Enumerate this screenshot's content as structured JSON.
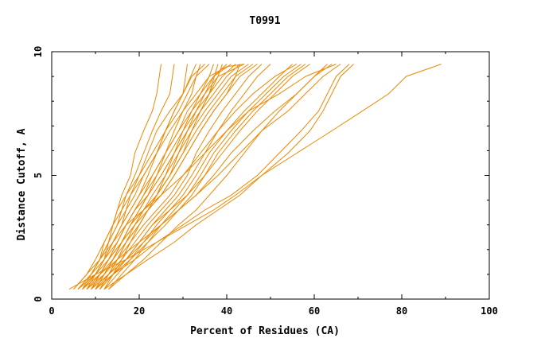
{
  "chart_data": {
    "type": "line",
    "title": "T0991",
    "xlabel": "Percent of Residues (CA)",
    "ylabel": "Distance Cutoff, A",
    "xlim": [
      0,
      100
    ],
    "ylim": [
      0,
      10
    ],
    "x_ticks": [
      0,
      20,
      40,
      60,
      80,
      100
    ],
    "y_ticks": [
      0,
      5,
      10
    ],
    "grid": false,
    "legend": "none",
    "line_color": "#ee8800",
    "series_count": 34,
    "series": [
      {
        "x": [
          6,
          10,
          12,
          14,
          16,
          17,
          18,
          20,
          23,
          26,
          29,
          31,
          33,
          36
        ],
        "y": [
          0.4,
          1.0,
          1.6,
          2.3,
          3.0,
          3.6,
          4.2,
          5.0,
          5.9,
          6.8,
          7.6,
          8.3,
          9.0,
          9.5
        ]
      },
      {
        "x": [
          5,
          8,
          11,
          13,
          15,
          17,
          19,
          21,
          24,
          27,
          30,
          33,
          36,
          40,
          44
        ],
        "y": [
          0.4,
          1.0,
          1.6,
          2.3,
          3.0,
          3.6,
          4.2,
          5.0,
          5.9,
          6.8,
          7.6,
          8.3,
          9.0,
          9.4,
          9.5
        ]
      },
      {
        "x": [
          7,
          10,
          12,
          13,
          14,
          15,
          17,
          20,
          22,
          24,
          27,
          30,
          33
        ],
        "y": [
          0.4,
          1.0,
          1.6,
          2.3,
          3.0,
          3.6,
          4.2,
          5.0,
          5.9,
          6.8,
          7.6,
          8.3,
          9.5
        ]
      },
      {
        "x": [
          8,
          11,
          13,
          15,
          17,
          19,
          21,
          23,
          26,
          29,
          31,
          34,
          37,
          40
        ],
        "y": [
          0.4,
          1.0,
          1.6,
          2.3,
          3.0,
          3.6,
          4.2,
          5.0,
          5.9,
          6.8,
          7.6,
          8.3,
          9.0,
          9.5
        ]
      },
      {
        "x": [
          6,
          9,
          12,
          15,
          17,
          19,
          21,
          24,
          27,
          30,
          33,
          36,
          38
        ],
        "y": [
          0.4,
          1.0,
          1.6,
          2.3,
          3.0,
          3.6,
          4.2,
          5.0,
          5.9,
          6.8,
          7.6,
          8.3,
          9.5
        ]
      },
      {
        "x": [
          9,
          11,
          13,
          15,
          17,
          19,
          22,
          25,
          28,
          31,
          34,
          36,
          39,
          42
        ],
        "y": [
          0.4,
          1.0,
          1.6,
          2.3,
          3.0,
          3.6,
          4.2,
          5.0,
          5.9,
          6.8,
          7.6,
          8.3,
          9.0,
          9.5
        ]
      },
      {
        "x": [
          7,
          9,
          11,
          12,
          14,
          16,
          18,
          21,
          24,
          26,
          28,
          30,
          32,
          35
        ],
        "y": [
          0.4,
          1.0,
          1.6,
          2.3,
          3.0,
          3.6,
          4.2,
          5.0,
          5.9,
          6.8,
          7.6,
          8.3,
          9.0,
          9.5
        ]
      },
      {
        "x": [
          10,
          12,
          14,
          16,
          18,
          20,
          22,
          25,
          28,
          31,
          33,
          35,
          37,
          41
        ],
        "y": [
          0.4,
          1.0,
          1.6,
          2.3,
          3.0,
          3.6,
          4.2,
          5.0,
          5.9,
          6.8,
          7.6,
          8.3,
          9.0,
          9.5
        ]
      },
      {
        "x": [
          11,
          13,
          15,
          17,
          20,
          22,
          24,
          27,
          30,
          33,
          36,
          39,
          42,
          46
        ],
        "y": [
          0.4,
          1.0,
          1.6,
          2.3,
          3.0,
          3.6,
          4.2,
          5.0,
          5.9,
          6.8,
          7.6,
          8.3,
          9.0,
          9.5
        ]
      },
      {
        "x": [
          8,
          10,
          12,
          14,
          16,
          18,
          20,
          23,
          26,
          29,
          32,
          35,
          38,
          44
        ],
        "y": [
          0.4,
          1.0,
          1.6,
          2.3,
          3.0,
          3.6,
          4.2,
          5.0,
          5.9,
          6.8,
          7.6,
          8.3,
          9.0,
          9.5
        ]
      },
      {
        "x": [
          9,
          12,
          14,
          16,
          19,
          21,
          23,
          26,
          29,
          32,
          35,
          38,
          41,
          45
        ],
        "y": [
          0.4,
          1.0,
          1.6,
          2.3,
          3.0,
          3.6,
          4.2,
          5.0,
          5.9,
          6.8,
          7.6,
          8.3,
          9.0,
          9.5
        ]
      },
      {
        "x": [
          12,
          14,
          16,
          18,
          20,
          22,
          25,
          28,
          31,
          34,
          37,
          40,
          43,
          47
        ],
        "y": [
          0.4,
          1.0,
          1.6,
          2.3,
          3.0,
          3.6,
          4.2,
          5.0,
          5.9,
          6.8,
          7.6,
          8.3,
          9.0,
          9.5
        ]
      },
      {
        "x": [
          10,
          13,
          15,
          17,
          19,
          21,
          24,
          27,
          29,
          31,
          34,
          37,
          40,
          43
        ],
        "y": [
          0.4,
          1.0,
          1.6,
          2.3,
          3.0,
          3.6,
          4.2,
          5.0,
          5.9,
          6.8,
          7.6,
          8.3,
          9.0,
          9.5
        ]
      },
      {
        "x": [
          6,
          9,
          11,
          13,
          15,
          16,
          17,
          19,
          21,
          23,
          25,
          27,
          28
        ],
        "y": [
          0.4,
          1.0,
          1.6,
          2.3,
          3.0,
          3.6,
          4.2,
          5.0,
          5.9,
          6.8,
          7.6,
          8.3,
          9.5
        ]
      },
      {
        "x": [
          7,
          10,
          12,
          14,
          16,
          18,
          20,
          22,
          24,
          26,
          28,
          30,
          31
        ],
        "y": [
          0.4,
          1.0,
          1.6,
          2.3,
          3.0,
          3.6,
          4.2,
          5.0,
          5.9,
          6.8,
          7.6,
          8.3,
          9.5
        ]
      },
      {
        "x": [
          5,
          8,
          10,
          12,
          14,
          15,
          16,
          18,
          19,
          21,
          23,
          24,
          25
        ],
        "y": [
          0.4,
          1.0,
          1.6,
          2.3,
          3.0,
          3.6,
          4.2,
          5.0,
          5.9,
          6.8,
          7.6,
          8.3,
          9.5
        ]
      },
      {
        "x": [
          11,
          14,
          17,
          20,
          23,
          26,
          29,
          32,
          35,
          38,
          41,
          44,
          47,
          50
        ],
        "y": [
          0.4,
          1.0,
          1.6,
          2.3,
          3.0,
          3.6,
          4.2,
          5.0,
          5.9,
          6.8,
          7.6,
          8.3,
          9.0,
          9.5
        ]
      },
      {
        "x": [
          12,
          15,
          18,
          21,
          24,
          27,
          30,
          33,
          36,
          40,
          44,
          48,
          52,
          55
        ],
        "y": [
          0.4,
          1.0,
          1.6,
          2.3,
          3.0,
          3.6,
          4.2,
          5.0,
          5.9,
          6.8,
          7.6,
          8.3,
          9.0,
          9.5
        ]
      },
      {
        "x": [
          10,
          14,
          18,
          22,
          26,
          29,
          32,
          35,
          38,
          42,
          46,
          50,
          54,
          58
        ],
        "y": [
          0.4,
          1.0,
          1.6,
          2.3,
          3.0,
          3.6,
          4.2,
          5.0,
          5.9,
          6.8,
          7.6,
          8.3,
          9.0,
          9.5
        ]
      },
      {
        "x": [
          13,
          17,
          21,
          25,
          29,
          33,
          36,
          40,
          44,
          48,
          52,
          56,
          60,
          63
        ],
        "y": [
          0.4,
          1.0,
          1.6,
          2.3,
          3.0,
          3.6,
          4.2,
          5.0,
          5.9,
          6.8,
          7.6,
          8.3,
          9.0,
          9.5
        ]
      },
      {
        "x": [
          9,
          13,
          17,
          21,
          25,
          29,
          33,
          37,
          41,
          46,
          51,
          56,
          60,
          64
        ],
        "y": [
          0.4,
          1.0,
          1.6,
          2.3,
          3.0,
          3.6,
          4.2,
          5.0,
          5.9,
          6.8,
          7.6,
          8.3,
          9.0,
          9.5
        ]
      },
      {
        "x": [
          8,
          12,
          15,
          18,
          21,
          24,
          27,
          30,
          34,
          38,
          42,
          46,
          51,
          56
        ],
        "y": [
          0.4,
          1.0,
          1.6,
          2.3,
          3.0,
          3.6,
          4.2,
          5.0,
          5.9,
          6.8,
          7.6,
          8.3,
          9.0,
          9.5
        ]
      },
      {
        "x": [
          11,
          14,
          17,
          20,
          23,
          27,
          31,
          35,
          39,
          43,
          47,
          51,
          55,
          59
        ],
        "y": [
          0.4,
          1.0,
          1.6,
          2.3,
          3.0,
          3.6,
          4.2,
          5.0,
          5.9,
          6.8,
          7.6,
          8.3,
          9.0,
          9.5
        ]
      },
      {
        "x": [
          6,
          9,
          11,
          14,
          17,
          21,
          25,
          30,
          35,
          40,
          45,
          52,
          58,
          65
        ],
        "y": [
          0.4,
          1.0,
          1.6,
          2.3,
          3.0,
          3.6,
          4.2,
          5.0,
          5.9,
          6.8,
          7.6,
          8.3,
          9.0,
          9.5
        ]
      },
      {
        "x": [
          7,
          11,
          15,
          20,
          25,
          29,
          33,
          38,
          43,
          48,
          54,
          58,
          62,
          66
        ],
        "y": [
          0.4,
          1.0,
          1.6,
          2.3,
          3.0,
          3.6,
          4.2,
          5.0,
          5.9,
          6.8,
          7.6,
          8.3,
          9.0,
          9.5
        ]
      },
      {
        "x": [
          10,
          14,
          19,
          24,
          30,
          35,
          41,
          47,
          52,
          57,
          61,
          63,
          65,
          68
        ],
        "y": [
          0.4,
          1.0,
          1.6,
          2.3,
          3.0,
          3.6,
          4.2,
          5.0,
          5.9,
          6.8,
          7.6,
          8.3,
          9.0,
          9.5
        ]
      },
      {
        "x": [
          12,
          17,
          22,
          28,
          33,
          38,
          43,
          48,
          54,
          59,
          62,
          64,
          66,
          69
        ],
        "y": [
          0.4,
          1.0,
          1.6,
          2.3,
          3.0,
          3.6,
          4.2,
          5.0,
          5.9,
          6.8,
          7.6,
          8.3,
          9.0,
          9.5
        ]
      },
      {
        "x": [
          4,
          10,
          17,
          24,
          31,
          37,
          42,
          48,
          56,
          64,
          71,
          77,
          81,
          89
        ],
        "y": [
          0.4,
          1.0,
          1.6,
          2.3,
          3.0,
          3.6,
          4.2,
          5.0,
          5.9,
          6.8,
          7.6,
          8.3,
          9.0,
          9.5
        ]
      },
      {
        "x": [
          8,
          11,
          14,
          17,
          20,
          22,
          24,
          26,
          28,
          30,
          32,
          34,
          36,
          37
        ],
        "y": [
          0.4,
          1.0,
          1.6,
          2.3,
          3.0,
          3.6,
          4.2,
          5.0,
          5.9,
          6.8,
          7.6,
          8.3,
          9.0,
          9.5
        ]
      },
      {
        "x": [
          9,
          11,
          13,
          16,
          18,
          20,
          22,
          24,
          26,
          28,
          30,
          32,
          33,
          34
        ],
        "y": [
          0.4,
          1.0,
          1.6,
          2.3,
          3.0,
          3.6,
          4.2,
          5.0,
          5.9,
          6.8,
          7.6,
          8.3,
          9.0,
          9.5
        ]
      },
      {
        "x": [
          10,
          12,
          14,
          16,
          18,
          21,
          24,
          27,
          30,
          32,
          34,
          36,
          38,
          39
        ],
        "y": [
          0.4,
          1.0,
          1.6,
          2.3,
          3.0,
          3.6,
          4.2,
          5.0,
          5.9,
          6.8,
          7.6,
          8.3,
          9.0,
          9.5
        ]
      },
      {
        "x": [
          13,
          16,
          19,
          22,
          25,
          28,
          31,
          34,
          37,
          41,
          45,
          49,
          53,
          57
        ],
        "y": [
          0.4,
          1.0,
          1.6,
          2.3,
          3.0,
          3.6,
          4.2,
          5.0,
          5.9,
          6.8,
          7.6,
          8.3,
          9.0,
          9.5
        ]
      },
      {
        "x": [
          11,
          13,
          16,
          19,
          22,
          25,
          28,
          31,
          33,
          36,
          39,
          42,
          45,
          48
        ],
        "y": [
          0.4,
          1.0,
          1.6,
          2.3,
          3.0,
          3.6,
          4.2,
          5.0,
          5.9,
          6.8,
          7.6,
          8.3,
          9.0,
          9.5
        ]
      },
      {
        "x": [
          7,
          10,
          13,
          16,
          19,
          22,
          25,
          28,
          31,
          34,
          37,
          40,
          42,
          43
        ],
        "y": [
          0.4,
          1.0,
          1.6,
          2.3,
          3.0,
          3.6,
          4.2,
          5.0,
          5.9,
          6.8,
          7.6,
          8.3,
          9.0,
          9.5
        ]
      }
    ]
  }
}
